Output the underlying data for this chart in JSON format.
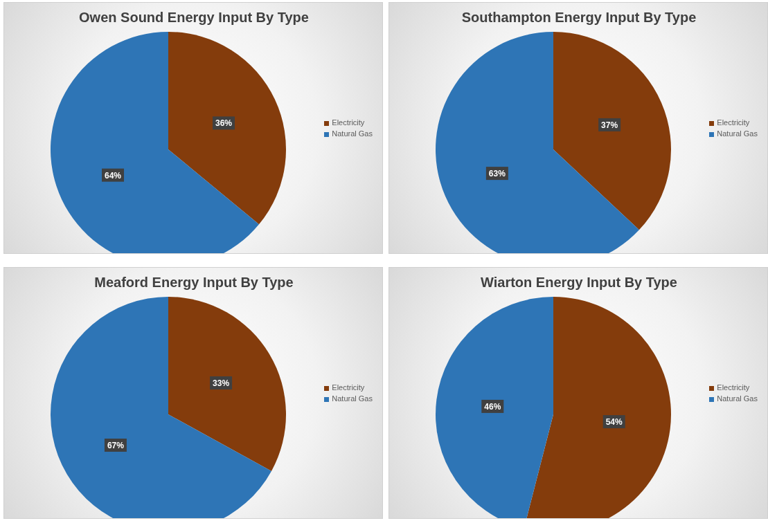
{
  "chart_data": [
    {
      "type": "pie",
      "title": "Owen Sound Energy Input By Type",
      "categories": [
        "Electricity",
        "Natural Gas"
      ],
      "values": [
        36,
        64
      ],
      "colors": [
        "#843c0c",
        "#2e75b6"
      ],
      "value_labels": [
        "36%",
        "64%"
      ],
      "legend": "right"
    },
    {
      "type": "pie",
      "title": "Southampton Energy Input By Type",
      "categories": [
        "Electricity",
        "Natural Gas"
      ],
      "values": [
        37,
        63
      ],
      "colors": [
        "#843c0c",
        "#2e75b6"
      ],
      "value_labels": [
        "37%",
        "63%"
      ],
      "legend": "right"
    },
    {
      "type": "pie",
      "title": "Meaford Energy Input By Type",
      "categories": [
        "Electricity",
        "Natural Gas"
      ],
      "values": [
        33,
        67
      ],
      "colors": [
        "#843c0c",
        "#2e75b6"
      ],
      "value_labels": [
        "33%",
        "67%"
      ],
      "legend": "right"
    },
    {
      "type": "pie",
      "title": "Wiarton Energy Input By Type",
      "categories": [
        "Electricity",
        "Natural Gas"
      ],
      "values": [
        54,
        46
      ],
      "colors": [
        "#843c0c",
        "#2e75b6"
      ],
      "value_labels": [
        "54%",
        "46%"
      ],
      "legend": "right"
    }
  ]
}
